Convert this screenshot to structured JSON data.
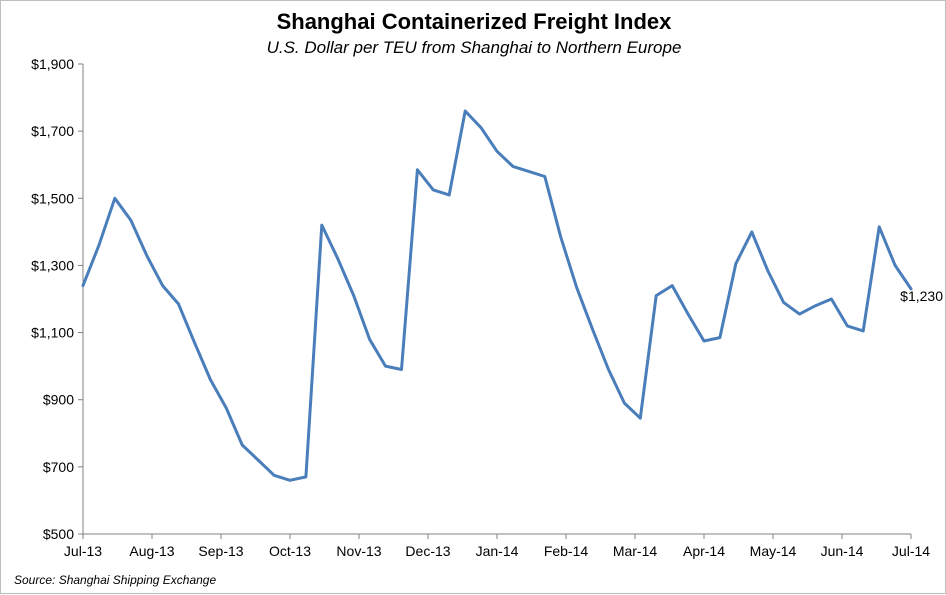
{
  "chart_data": {
    "type": "line",
    "title": "Shanghai Containerized Freight Index",
    "subtitle": "U.S. Dollar per TEU from Shanghai to Northern Europe",
    "source": "Source: Shanghai Shipping Exchange",
    "xlabel": "",
    "ylabel": "",
    "ylim": [
      500,
      1900
    ],
    "y_ticks": [
      500,
      700,
      900,
      1100,
      1300,
      1500,
      1700,
      1900
    ],
    "y_tick_labels": [
      "$500",
      "$700",
      "$900",
      "$1,100",
      "$1,300",
      "$1,500",
      "$1,700",
      "$1,900"
    ],
    "x_tick_labels": [
      "Jul-13",
      "Aug-13",
      "Sep-13",
      "Oct-13",
      "Nov-13",
      "Dec-13",
      "Jan-14",
      "Feb-14",
      "Mar-14",
      "Apr-14",
      "May-14",
      "Jun-14",
      "Jul-14"
    ],
    "grid": false,
    "legend": "none",
    "line_color": "#4a7ebb",
    "end_label": "$1,230",
    "series": [
      {
        "values": [
          1240,
          1360,
          1500,
          1435,
          1330,
          1240,
          1185,
          1070,
          960,
          875,
          765,
          720,
          675,
          660,
          670,
          1420,
          1320,
          1210,
          1080,
          1000,
          990,
          1585,
          1525,
          1510,
          1760,
          1710,
          1640,
          1595,
          1580,
          1565,
          1385,
          1235,
          1110,
          990,
          890,
          845,
          1210,
          1240,
          1155,
          1075,
          1085,
          1305,
          1400,
          1285,
          1190,
          1155,
          1180,
          1200,
          1120,
          1105,
          1415,
          1300,
          1230
        ]
      }
    ]
  }
}
